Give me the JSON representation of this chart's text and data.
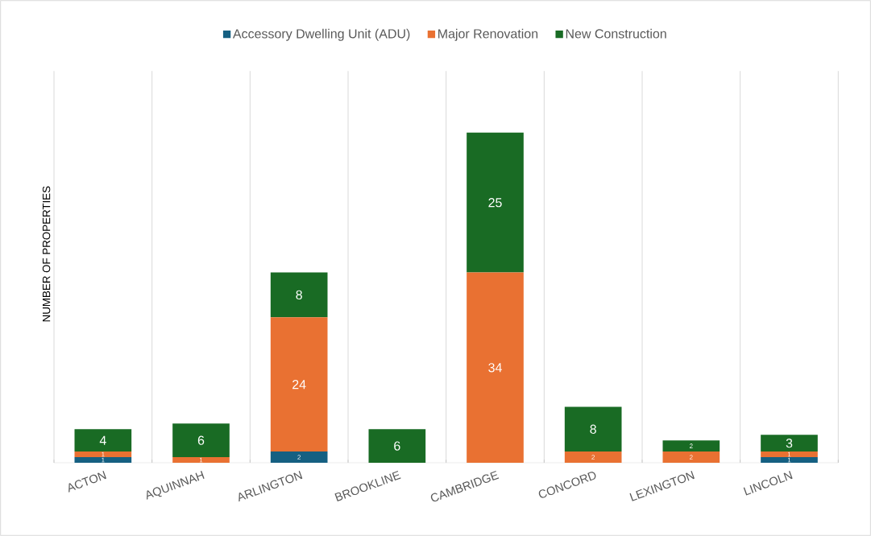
{
  "chart_data": {
    "type": "bar",
    "stacked": true,
    "ylabel": "NUMBER OF PROPERTIES",
    "categories": [
      "ACTON",
      "AQUINNAH",
      "ARLINGTON",
      "BROOKLINE",
      "CAMBRIDGE",
      "CONCORD",
      "LEXINGTON",
      "LINCOLN"
    ],
    "series": [
      {
        "name": "Accessory Dwelling Unit (ADU)",
        "color": "#156082",
        "values": [
          1,
          null,
          2,
          null,
          null,
          null,
          null,
          1
        ]
      },
      {
        "name": "Major Renovation",
        "color": "#e97132",
        "values": [
          1,
          1,
          24,
          null,
          34,
          2,
          2,
          1
        ]
      },
      {
        "name": "New Construction",
        "color": "#196b24",
        "values": [
          4,
          6,
          8,
          6,
          25,
          8,
          2,
          3
        ]
      }
    ],
    "ylim": [
      0,
      70
    ],
    "data_labels": true,
    "grid": "x",
    "legend": "top"
  }
}
